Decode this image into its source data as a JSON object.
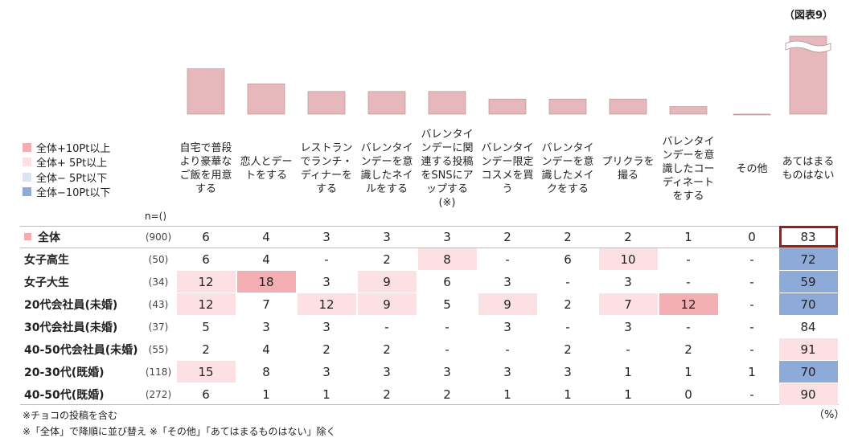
{
  "figure_label": "（図表9）",
  "n_label": "n=()",
  "unit": "（%）",
  "legend": [
    {
      "label": "全体+10Pt以上",
      "color": "#f3aeb4"
    },
    {
      "label": "全体+ 5Pt以上",
      "color": "#fde0e3"
    },
    {
      "label": "全体− 5Pt以下",
      "color": "#dce3f1"
    },
    {
      "label": "全体−10Pt以下",
      "color": "#8eaad8"
    }
  ],
  "bar_color": "#e6b8bb",
  "columns": [
    "自宅で普段より豪華なご飯を用意する",
    "恋人とデートをする",
    "レストランでランチ・ディナーをする",
    "バレンタインデーを意識したネイルをする",
    "バレンタインデーに関連する投稿をSNSにアップする(※)",
    "バレンタインデー限定コスメを買う",
    "バレンタインデーを意識したメイクをする",
    "プリクラを撮る",
    "バレンタインデーを意識したコーディネートをする",
    "その他",
    "あてはまるものはない"
  ],
  "table": {
    "rows": [
      {
        "label": "全体",
        "n": "(900)",
        "values": [
          6,
          4,
          3,
          3,
          3,
          2,
          2,
          2,
          1,
          0,
          83
        ],
        "colors": [
          null,
          null,
          null,
          null,
          null,
          null,
          null,
          null,
          null,
          null,
          null
        ]
      },
      {
        "label": "女子高生",
        "n": "(50)",
        "values": [
          6,
          4,
          "-",
          2,
          8,
          "-",
          6,
          10,
          "-",
          "-",
          72
        ],
        "colors": [
          null,
          null,
          null,
          null,
          "#fde0e3",
          null,
          null,
          "#fde0e3",
          null,
          null,
          "#8eaad8"
        ]
      },
      {
        "label": "女子大生",
        "n": "(34)",
        "values": [
          12,
          18,
          3,
          9,
          6,
          3,
          "-",
          3,
          "-",
          "-",
          59
        ],
        "colors": [
          "#fde0e3",
          "#f3aeb4",
          null,
          "#fde0e3",
          null,
          null,
          null,
          null,
          null,
          null,
          "#8eaad8"
        ]
      },
      {
        "label": "20代会社員(未婚)",
        "n": "(43)",
        "values": [
          12,
          7,
          12,
          9,
          5,
          9,
          2,
          7,
          12,
          "-",
          70
        ],
        "colors": [
          "#fde0e3",
          null,
          "#fde0e3",
          "#fde0e3",
          null,
          "#fde0e3",
          null,
          "#fde0e3",
          "#f3aeb4",
          null,
          "#8eaad8"
        ]
      },
      {
        "label": "30代会社員(未婚)",
        "n": "(37)",
        "values": [
          5,
          3,
          3,
          "-",
          "-",
          3,
          "-",
          3,
          "-",
          "-",
          84
        ],
        "colors": [
          null,
          null,
          null,
          null,
          null,
          null,
          null,
          null,
          null,
          null,
          null
        ]
      },
      {
        "label": "40-50代会社員(未婚)",
        "n": "(55)",
        "values": [
          2,
          4,
          2,
          2,
          "-",
          "-",
          2,
          "-",
          2,
          "-",
          91
        ],
        "colors": [
          null,
          null,
          null,
          null,
          null,
          null,
          null,
          null,
          null,
          null,
          "#fde0e3"
        ]
      },
      {
        "label": "20-30代(既婚)",
        "n": "(118)",
        "values": [
          15,
          8,
          3,
          3,
          3,
          3,
          3,
          1,
          1,
          1,
          70
        ],
        "colors": [
          "#fde0e3",
          null,
          null,
          null,
          null,
          null,
          null,
          null,
          null,
          null,
          "#8eaad8"
        ]
      },
      {
        "label": "40-50代(既婚)",
        "n": "(272)",
        "values": [
          6,
          1,
          1,
          2,
          2,
          1,
          1,
          1,
          0,
          "-",
          90
        ],
        "colors": [
          null,
          null,
          null,
          null,
          null,
          null,
          null,
          null,
          null,
          null,
          "#fde0e3"
        ]
      }
    ]
  },
  "notes": [
    "※チョコの投稿を含む",
    "※「全体」で降順に並び替え ※「その他」「あてはまるものはない」除く"
  ]
}
